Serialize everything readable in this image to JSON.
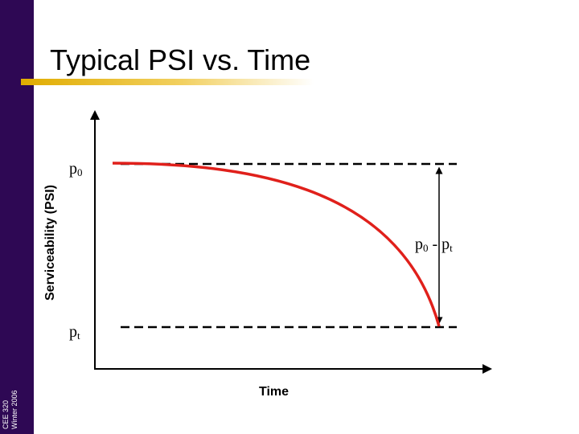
{
  "slide": {
    "title": "Typical PSI vs. Time",
    "footer": {
      "line1": "CEE 320",
      "line2": "Winter 2006"
    }
  },
  "chart_data": {
    "type": "line",
    "ylabel": "Serviceability (PSI)",
    "xlabel": "Time",
    "reference_lines": {
      "initial": {
        "base": "p",
        "sub": "0"
      },
      "terminal": {
        "base": "p",
        "sub": "t"
      }
    },
    "difference_label": {
      "base1": "p",
      "sub1": "0",
      "sep": " - ",
      "base2": "p",
      "sub2": "t"
    },
    "colors": {
      "curve": "#e0201b",
      "axes": "#000000",
      "sidebar": "#2e0854",
      "accent": "#e0ac00"
    }
  }
}
